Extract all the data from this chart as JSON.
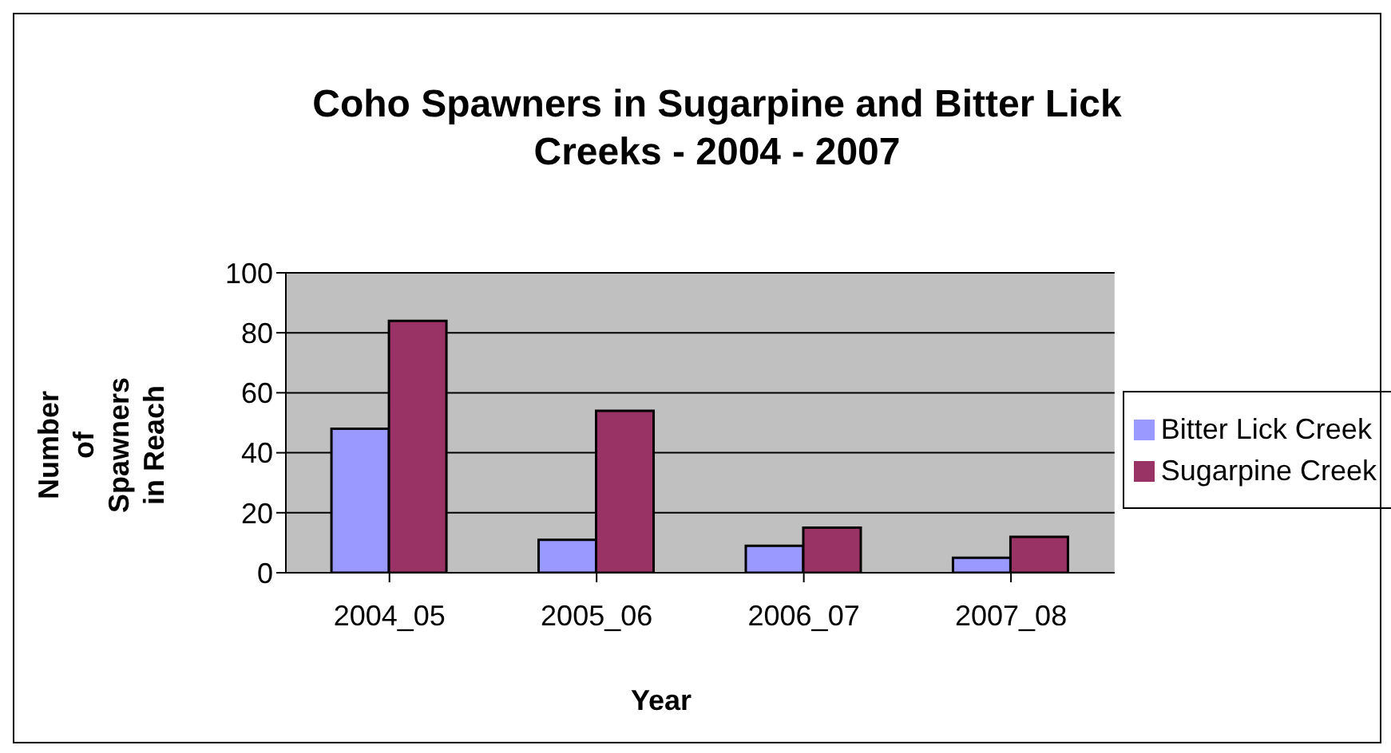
{
  "chart_data": {
    "type": "bar",
    "title": "Coho Spawners in Sugarpine and Bitter Lick Creeks - 2004 - 2007",
    "xlabel": "Year",
    "ylabel": "Number of Spawners in Reach",
    "categories": [
      "2004_05",
      "2005_06",
      "2006_07",
      "2007_08"
    ],
    "series": [
      {
        "name": "Bitter Lick Creek",
        "color": "#9999ff",
        "values": [
          48,
          11,
          9,
          5
        ]
      },
      {
        "name": "Sugarpine Creek",
        "color": "#993366",
        "values": [
          84,
          54,
          15,
          12
        ]
      }
    ],
    "ylim": [
      0,
      100
    ],
    "yticks": [
      0,
      20,
      40,
      60,
      80,
      100
    ],
    "grid": "y",
    "legend": "right"
  }
}
